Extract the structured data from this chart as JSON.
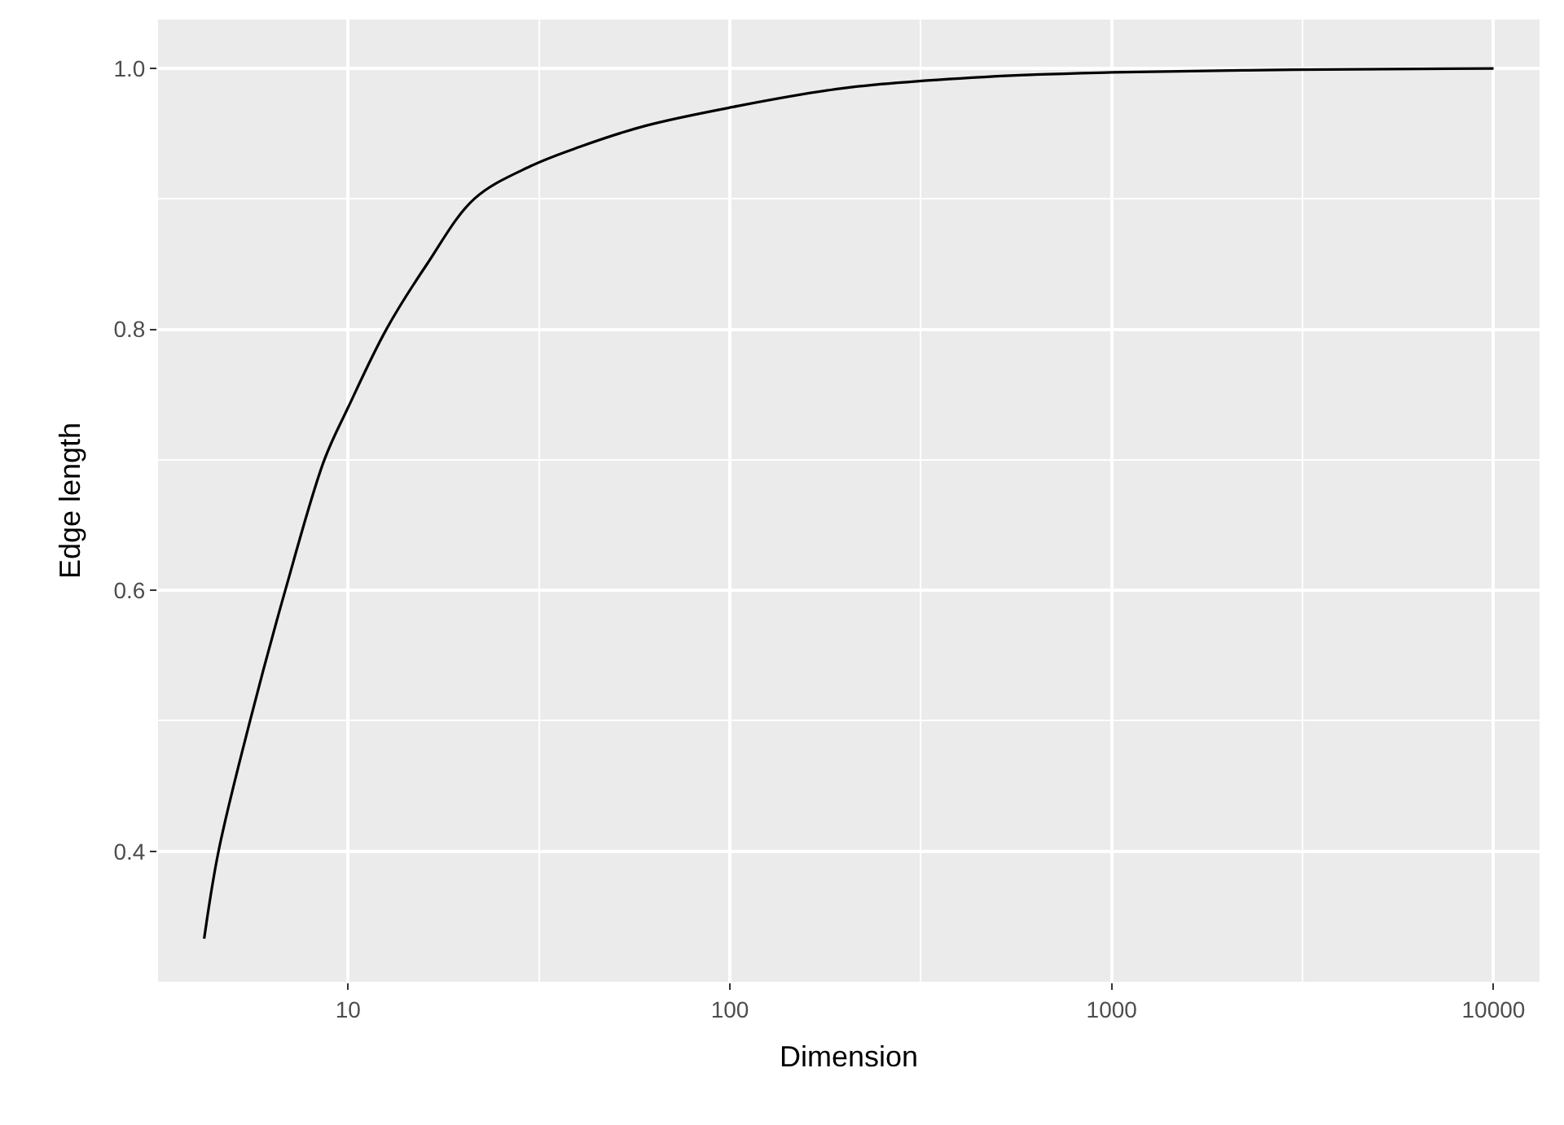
{
  "chart_data": {
    "type": "line",
    "xlabel": "Dimension",
    "ylabel": "Edge length",
    "log": "x",
    "x": [
      4.2,
      4.58,
      5.54,
      6.85,
      8.67,
      10,
      12.6,
      16.1,
      21.4,
      30,
      40.5,
      60,
      100,
      200,
      500,
      1000,
      3000,
      10000
    ],
    "series": [
      {
        "color": "#000000",
        "values": [
          0.333,
          0.4,
          0.5,
          0.6,
          0.7,
          0.74,
          0.8,
          0.85,
          0.9,
          0.925,
          0.94,
          0.956,
          0.97,
          0.985,
          0.994,
          0.997,
          0.999,
          1.0
        ]
      }
    ],
    "xlim": [
      3.18,
      13200
    ],
    "xticks": [
      10,
      100,
      1000,
      10000
    ],
    "ylim": [
      0.3,
      1.0375
    ],
    "yticks": [
      {
        "value": 0.4,
        "label": "0.4"
      },
      {
        "value": 0.6,
        "label": "0.6"
      },
      {
        "value": 0.8,
        "label": "0.8"
      },
      {
        "value": 1.0,
        "label": "1.0"
      }
    ],
    "grid": true,
    "legend": false,
    "marker": "none",
    "line_style": "solid"
  }
}
